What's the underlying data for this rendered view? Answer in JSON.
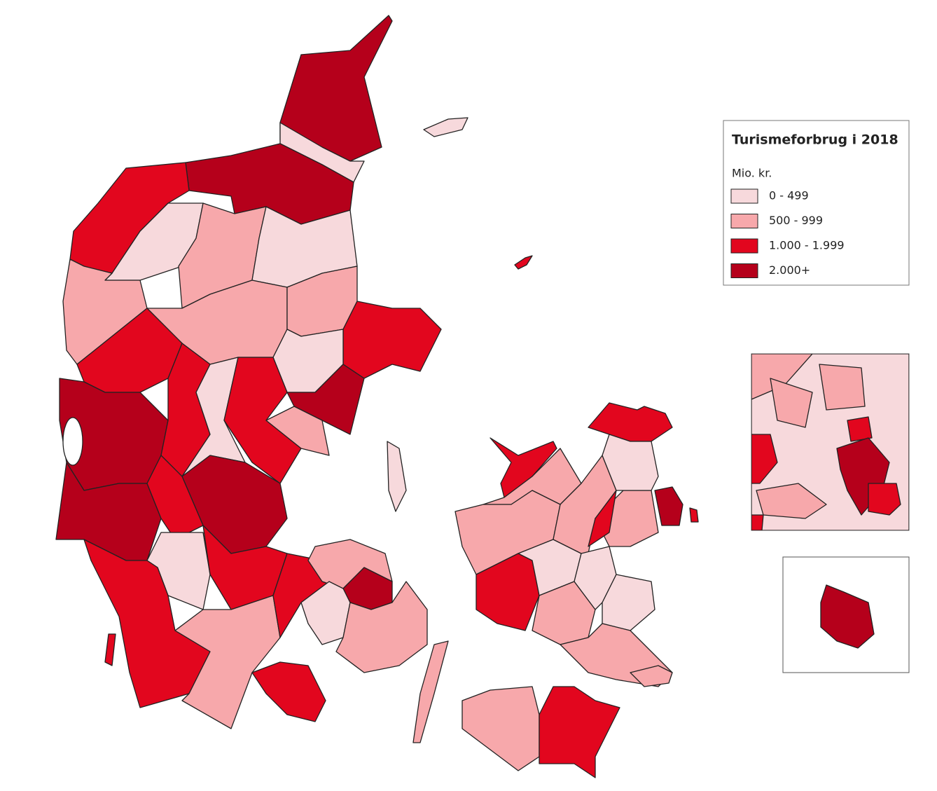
{
  "legend": {
    "title": "Turismeforbrug i 2018",
    "unit": "Mio. kr.",
    "items": [
      {
        "label": "0 - 499",
        "color": "#f7d9dc"
      },
      {
        "label": "500 - 999",
        "color": "#f7a8ab"
      },
      {
        "label": "1.000 - 1.999",
        "color": "#e2061e"
      },
      {
        "label": "2.000+",
        "color": "#b5001b"
      }
    ]
  }
}
